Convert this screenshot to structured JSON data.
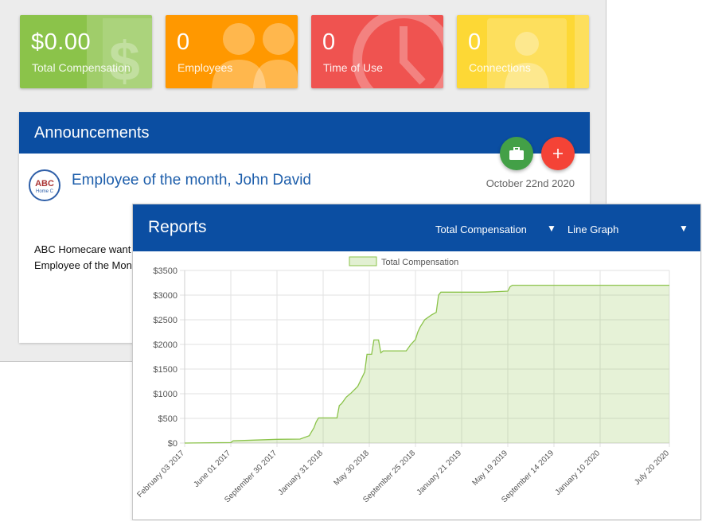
{
  "stats": [
    {
      "value": "$0.00",
      "label": "Total Compensation",
      "color": "#8bc34a",
      "icon": "dollar-icon"
    },
    {
      "value": "0",
      "label": "Employees",
      "color": "#ff9800",
      "icon": "people-icon"
    },
    {
      "value": "0",
      "label": "Time of Use",
      "color": "#ef5350",
      "icon": "clock-icon"
    },
    {
      "value": "0",
      "label": "Connections",
      "color": "#fdd835",
      "icon": "contact-card-icon"
    }
  ],
  "announcements": {
    "title": "Announcements",
    "post": {
      "title": "Employee of the month, John David",
      "date": "October 22nd 2020",
      "body_line1": "ABC Homecare want",
      "body_line2": "Employee of the Mon",
      "logo_text": "ABC",
      "logo_sub": "Home C"
    },
    "fab_icons": [
      "briefcase-icon",
      "plus-icon"
    ]
  },
  "reports": {
    "title": "Reports",
    "metric_select": "Total Compensation",
    "type_select": "Line Graph"
  },
  "chart_data": {
    "type": "area",
    "legend": "Total Compensation",
    "color": "#8bc34a",
    "y_ticks": [
      "$0",
      "$500",
      "$1000",
      "$1500",
      "$2000",
      "$2500",
      "$3000",
      "$3500"
    ],
    "ylim": [
      0,
      3500
    ],
    "x_ticks": [
      "February 03 2017",
      "June 01 2017",
      "September 30 2017",
      "January 31 2018",
      "May 30 2018",
      "September 25 2018",
      "January 21 2019",
      "May 19 2019",
      "September 14 2019",
      "January 10 2020",
      "July 20 2020"
    ],
    "x_tick_pos": [
      0,
      1,
      2,
      3,
      4,
      5,
      6,
      7,
      8,
      9,
      10.5
    ],
    "points": [
      [
        0,
        0
      ],
      [
        1,
        10
      ],
      [
        1.05,
        45
      ],
      [
        2,
        75
      ],
      [
        2.5,
        80
      ],
      [
        2.7,
        150
      ],
      [
        2.75,
        230
      ],
      [
        2.8,
        310
      ],
      [
        2.85,
        430
      ],
      [
        2.9,
        510
      ],
      [
        3.3,
        510
      ],
      [
        3.35,
        760
      ],
      [
        3.4,
        800
      ],
      [
        3.5,
        930
      ],
      [
        3.6,
        1010
      ],
      [
        3.75,
        1150
      ],
      [
        3.9,
        1440
      ],
      [
        3.95,
        1800
      ],
      [
        4.05,
        1800
      ],
      [
        4.1,
        2090
      ],
      [
        4.2,
        2090
      ],
      [
        4.25,
        1830
      ],
      [
        4.3,
        1870
      ],
      [
        4.8,
        1870
      ],
      [
        4.9,
        2000
      ],
      [
        5.0,
        2100
      ],
      [
        5.05,
        2250
      ],
      [
        5.1,
        2350
      ],
      [
        5.2,
        2500
      ],
      [
        5.35,
        2600
      ],
      [
        5.45,
        2650
      ],
      [
        5.5,
        3000
      ],
      [
        5.55,
        3060
      ],
      [
        6.0,
        3060
      ],
      [
        6.5,
        3060
      ],
      [
        7.0,
        3080
      ],
      [
        7.05,
        3170
      ],
      [
        7.1,
        3200
      ],
      [
        10.5,
        3200
      ]
    ]
  }
}
